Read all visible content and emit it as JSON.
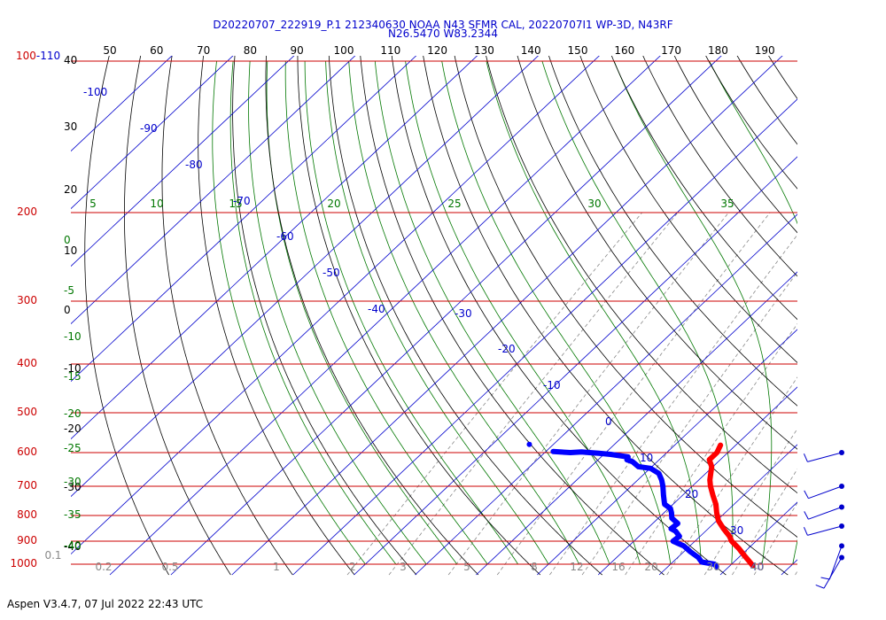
{
  "header": {
    "line1": "D20220707_222919_P.1 212340630 NOAA N43 SFMR CAL, 20220707I1 WP-3D, N43RF",
    "line2": "N26.5470 W83.2344"
  },
  "footer": {
    "text": "Aspen V3.4.7, 07 Jul 2022  22:43 UTC"
  },
  "colors": {
    "title": "#0000cc",
    "isobar": "#cc0000",
    "isotherm": "#0000cc",
    "dry_adiabat": "#000000",
    "moist_adiabat": "#007700",
    "mixing_ratio": "#888888",
    "temperature": "#ff0000",
    "dewpoint": "#0000ff",
    "wind_barb": "#0000cc"
  },
  "chart_data": {
    "type": "skew-t",
    "title": "",
    "xlabel": "",
    "ylabel": "",
    "pressure_axis": {
      "scale": "log",
      "range_hpa": [
        1000,
        100
      ],
      "tick_labels": [
        "100-110",
        "200",
        "300",
        "400",
        "500",
        "600",
        "700",
        "800",
        "900",
        "1000"
      ]
    },
    "isobars_hpa": [
      100,
      200,
      300,
      400,
      500,
      600,
      700,
      800,
      900,
      1000
    ],
    "isotherm_labels": [
      "-100",
      "-90",
      "-80",
      "-70",
      "-60",
      "-50",
      "-40",
      "-30",
      "-20",
      "-10",
      "0",
      "10",
      "20",
      "30",
      "40"
    ],
    "top_theta_labels": [
      "50",
      "60",
      "70",
      "80",
      "90",
      "100",
      "110",
      "120",
      "130",
      "140",
      "150",
      "160",
      "170",
      "180",
      "190"
    ],
    "left_dry_labels": [
      "40",
      "30",
      "20",
      "10",
      "0",
      "-10",
      "-20",
      "-30",
      "-40"
    ],
    "moist_top_labels": [
      "5",
      "10",
      "15",
      "20",
      "25",
      "30",
      "35"
    ],
    "moist_left_labels": [
      "0",
      "-5",
      "-10",
      "-15",
      "-20",
      "-25",
      "-30",
      "-35",
      "-40"
    ],
    "mixing_ratio_labels": [
      "0.1",
      "0.2",
      "0.5",
      "1",
      "2",
      "3",
      "5",
      "8",
      "12",
      "16",
      "20",
      "30",
      "40"
    ],
    "temperature_profile": [
      {
        "p": 580,
        "t": -2.5
      },
      {
        "p": 600,
        "t": -1.8
      },
      {
        "p": 620,
        "t": -1.8
      },
      {
        "p": 640,
        "t": -0.2
      },
      {
        "p": 660,
        "t": 0.8
      },
      {
        "p": 680,
        "t": 1.8
      },
      {
        "p": 700,
        "t": 3.0
      },
      {
        "p": 730,
        "t": 5.0
      },
      {
        "p": 760,
        "t": 7.0
      },
      {
        "p": 790,
        "t": 8.6
      },
      {
        "p": 820,
        "t": 10.3
      },
      {
        "p": 850,
        "t": 12.5
      },
      {
        "p": 880,
        "t": 14.8
      },
      {
        "p": 900,
        "t": 16.0
      },
      {
        "p": 930,
        "t": 18.4
      },
      {
        "p": 960,
        "t": 20.5
      },
      {
        "p": 990,
        "t": 22.6
      },
      {
        "p": 1008,
        "t": 23.8
      }
    ],
    "dewpoint_profile": [
      {
        "p": 597,
        "td": -28.8
      },
      {
        "p": 600,
        "td": -25.8
      },
      {
        "p": 598,
        "td": -24.1
      },
      {
        "p": 600,
        "td": -22.7
      },
      {
        "p": 602,
        "td": -21.0
      },
      {
        "p": 605,
        "td": -18.9
      },
      {
        "p": 612,
        "td": -15.6
      },
      {
        "p": 620,
        "td": -15.3
      },
      {
        "p": 625,
        "td": -14.1
      },
      {
        "p": 640,
        "td": -12.2
      },
      {
        "p": 645,
        "td": -9.9
      },
      {
        "p": 660,
        "td": -7.7
      },
      {
        "p": 680,
        "td": -6.1
      },
      {
        "p": 700,
        "td": -4.8
      },
      {
        "p": 730,
        "td": -3.1
      },
      {
        "p": 760,
        "td": -1.4
      },
      {
        "p": 775,
        "td": 0.3
      },
      {
        "p": 790,
        "td": 1.2
      },
      {
        "p": 810,
        "td": 2.2
      },
      {
        "p": 830,
        "td": 4.1
      },
      {
        "p": 850,
        "td": 3.9
      },
      {
        "p": 860,
        "td": 5.1
      },
      {
        "p": 880,
        "td": 6.6
      },
      {
        "p": 900,
        "td": 6.4
      },
      {
        "p": 920,
        "td": 9.0
      },
      {
        "p": 945,
        "td": 11.1
      },
      {
        "p": 970,
        "td": 13.4
      },
      {
        "p": 990,
        "td": 14.7
      },
      {
        "p": 1000,
        "td": 17.2
      },
      {
        "p": 1005,
        "td": 17.5
      },
      {
        "p": 1012,
        "td": 18.0
      }
    ],
    "wind_barbs": [
      {
        "p": 600,
        "dir_deg": 255,
        "speed_kt": 10
      },
      {
        "p": 700,
        "dir_deg": 250,
        "speed_kt": 10
      },
      {
        "p": 770,
        "dir_deg": 250,
        "speed_kt": 10
      },
      {
        "p": 840,
        "dir_deg": 255,
        "speed_kt": 10
      },
      {
        "p": 920,
        "dir_deg": 200,
        "speed_kt": 10
      },
      {
        "p": 970,
        "dir_deg": 210,
        "speed_kt": 10
      }
    ]
  }
}
